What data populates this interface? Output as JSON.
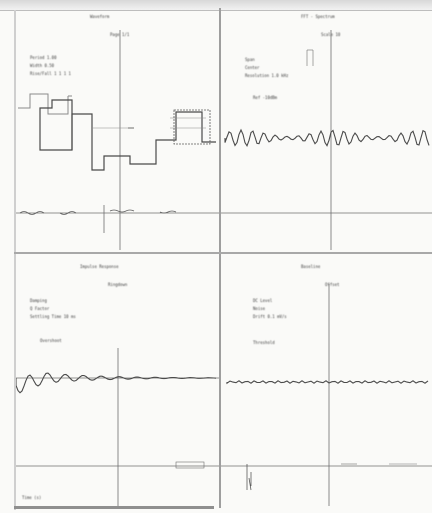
{
  "colors": {
    "trace": "#4a4a4a",
    "trace_faint": "#8a8a8a",
    "axis": "#6e6e6e",
    "separator": "#9e9e9e",
    "background": "#fafaf8"
  },
  "panels": {
    "top_left": {
      "title": "Waveform",
      "subtitle": "Page 1/1",
      "params": [
        "Period   1.00",
        "Width    0.50",
        "Rise/Fall 1 1 1 1"
      ],
      "note": "",
      "signal_type": "square-pulse"
    },
    "top_right": {
      "title": "FFT - Spectrum",
      "subtitle": "Scale 10",
      "params": [
        "Span",
        "Center",
        "Resolution 1.0 kHz"
      ],
      "note": "Ref  -10dBm",
      "signal_type": "dense-oscillation"
    },
    "bottom_left": {
      "title": "Impulse Response",
      "subtitle": "Ringdown",
      "params": [
        "Damping",
        "Q Factor",
        "Settling Time 10 ms"
      ],
      "note": "Overshoot",
      "signal_type": "damped-ring"
    },
    "bottom_right": {
      "title": "Baseline",
      "subtitle": "Offset",
      "params": [
        "DC Level",
        "Noise",
        "Drift 0.1 mV/s"
      ],
      "note": "Threshold",
      "signal_type": "flat-noise"
    }
  },
  "footer": {
    "left_caption": "Time (s)"
  }
}
